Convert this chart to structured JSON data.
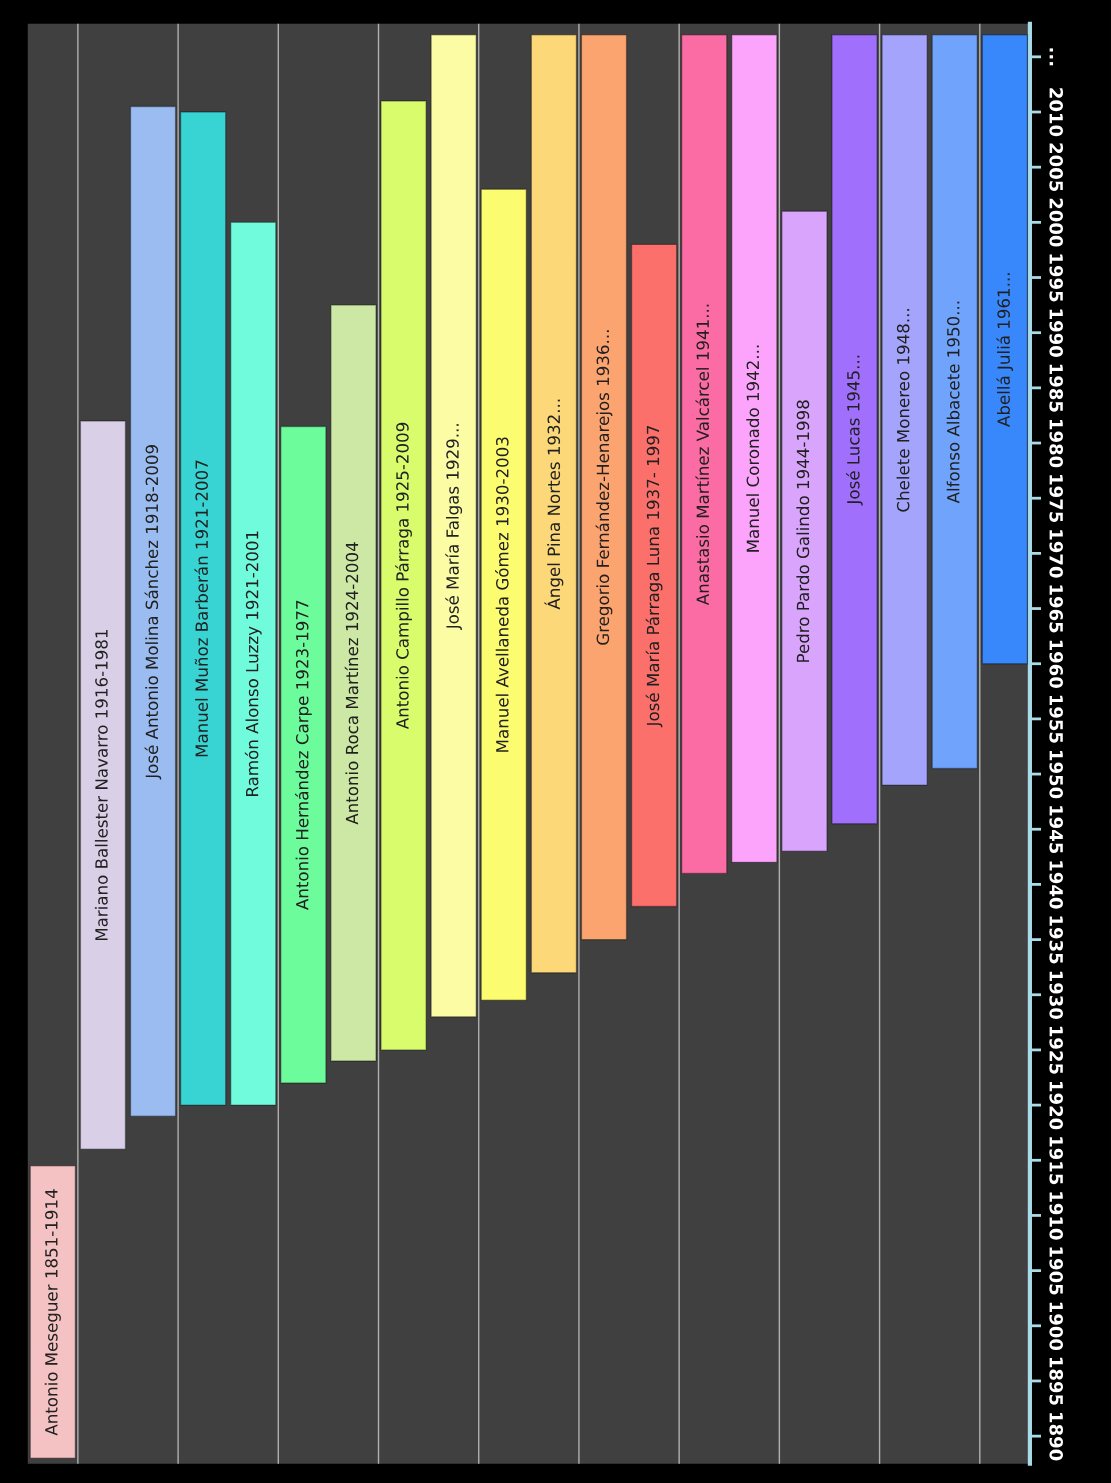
{
  "chart_data": {
    "type": "bar",
    "categories": [
      "Antonio Meseguer 1851-1914",
      "Mariano Ballester Navarro 1916-1981",
      "José Antonio Molina Sánchez 1918-2009",
      "Manuel Muñoz Barberán 1921-2007",
      "Ramón Alonso Luzzy 1921-2001",
      "Antonio Hernández Carpe 1923-1977",
      "Antonio Roca Martínez 1924-2004",
      "Antonio Campillo Párraga 1925-2009",
      "José María Falgas 1929...",
      "Manuel Avellaneda Gómez 1930-2003",
      "Ángel Pina Nortes 1932...",
      "Gregorio Fernández-Henarejos 1936...",
      "José María Párraga Luna 1937- 1997",
      "Anastasio Martínez Valcárcel 1941...",
      "Manuel Coronado 1942...",
      "Pedro Pardo Galindo 1944-1998",
      "José Lucas 1945...",
      "Chelete Monereo 1948...",
      "Alfonso Albacete 1950...",
      "Abellá Juliá 1961..."
    ],
    "base": [
      1888,
      1916,
      1919,
      1920,
      1920,
      1922,
      1924,
      1925,
      1928,
      1929.5,
      1932,
      1935,
      1938,
      1941,
      1942,
      1943,
      1945.5,
      1949,
      1950.5,
      1960
    ],
    "values": [
      26.5,
      66,
      91.5,
      90,
      80,
      59.5,
      68.5,
      86,
      89,
      73.5,
      85,
      82,
      60,
      76,
      75,
      58,
      71.5,
      68,
      66.5,
      57
    ],
    "colors": [
      "#f4c2c2",
      "#d9d0e8",
      "#9bbcf0",
      "#38d4d4",
      "#70fcdc",
      "#6cfc9c",
      "#cce8a4",
      "#d8fc6c",
      "#fcfca4",
      "#fcfc70",
      "#fcd878",
      "#fca470",
      "#fc706c",
      "#fc6ca4",
      "#fca4fc",
      "#d8a4fc",
      "#a070fc",
      "#a4a4fc",
      "#70a4fc",
      "#3888fc"
    ],
    "ylim": [
      1887.5,
      2018
    ],
    "yticks": [
      1890,
      1895,
      1900,
      1905,
      1910,
      1915,
      1920,
      1925,
      1930,
      1935,
      1940,
      1945,
      1950,
      1955,
      1960,
      1965,
      1970,
      1975,
      1980,
      1985,
      1990,
      1995,
      2000,
      2005,
      2010,
      {
        "value": 2015,
        "label": "..."
      }
    ],
    "grid": "x"
  }
}
